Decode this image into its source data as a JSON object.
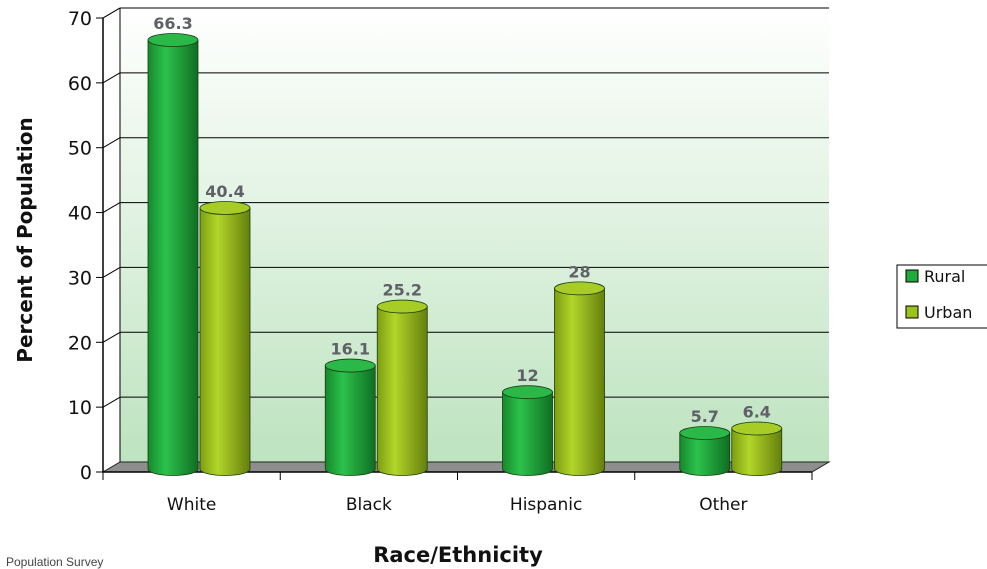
{
  "chart_data": {
    "type": "bar",
    "categories": [
      "White",
      "Black",
      "Hispanic",
      "Other"
    ],
    "series": [
      {
        "name": "Rural",
        "values": [
          66.3,
          16.1,
          12,
          5.7
        ],
        "color": "#1faa3c"
      },
      {
        "name": "Urban",
        "values": [
          40.4,
          25.2,
          28,
          6.4
        ],
        "color": "#9cc21e"
      }
    ],
    "data_labels": [
      [
        "66.3",
        "16.1",
        "12",
        "5.7"
      ],
      [
        "40.4",
        "25.2",
        "28",
        "6.4"
      ]
    ],
    "ylabel": "Percent of Population",
    "xlabel": "Race/Ethnicity",
    "ylim": [
      0,
      70
    ],
    "yticks": [
      0,
      10,
      20,
      30,
      40,
      50,
      60,
      70
    ],
    "grid": true,
    "legend_position": "right",
    "style": "3d-cylinder"
  },
  "footer": {
    "source": "Population Survey"
  }
}
